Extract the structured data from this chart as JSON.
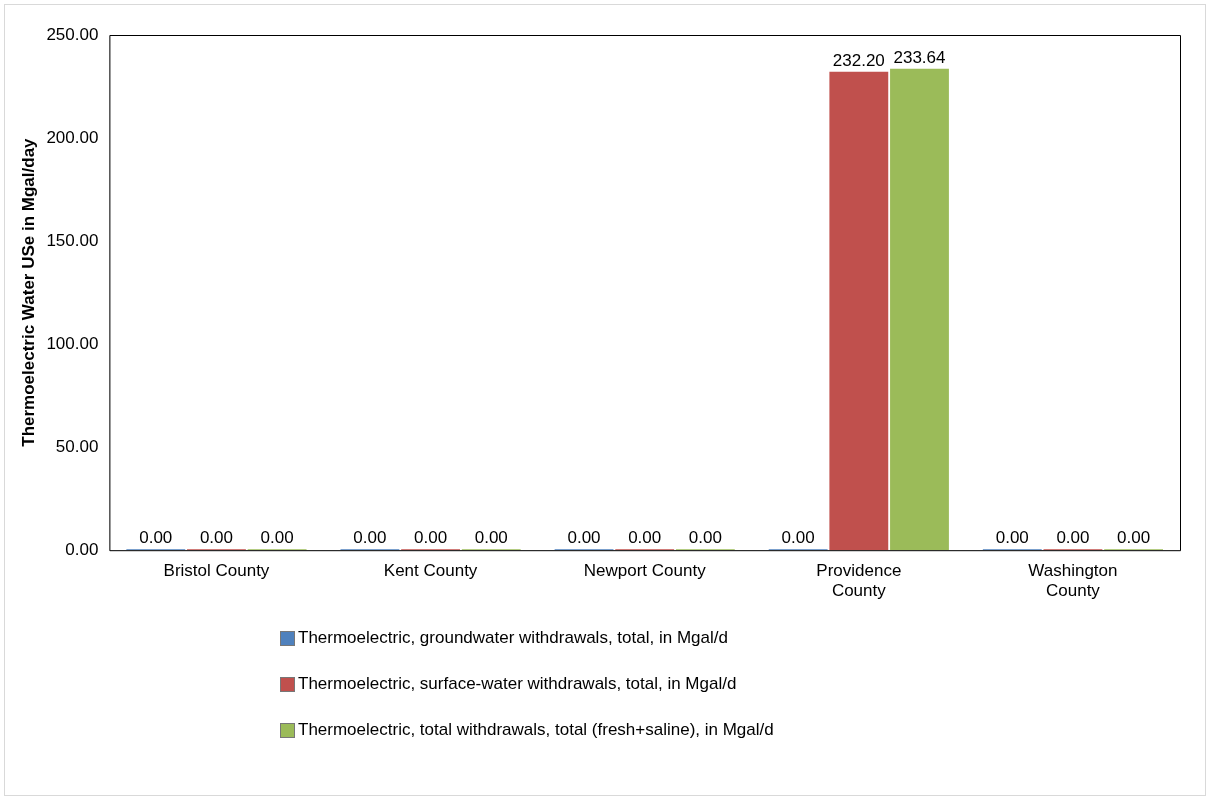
{
  "chart_data": {
    "type": "bar",
    "ylabel": "Thermoelectric Water USe in Mgal/day",
    "categories": [
      "Bristol County",
      "Kent County",
      "Newport County",
      "Providence County",
      "Washington County"
    ],
    "series": [
      {
        "name": "Thermoelectric, groundwater withdrawals, total, in Mgal/d",
        "color": "#4f81bd",
        "values": [
          0,
          0,
          0,
          0,
          0
        ],
        "value_labels": [
          "0.00",
          "0.00",
          "0.00",
          "0.00",
          "0.00"
        ]
      },
      {
        "name": "Thermoelectric, surface-water withdrawals, total, in Mgal/d",
        "color": "#c0504d",
        "values": [
          0,
          0,
          0,
          232.2,
          0
        ],
        "value_labels": [
          "0.00",
          "0.00",
          "0.00",
          "232.20",
          "0.00"
        ]
      },
      {
        "name": "Thermoelectric, total withdrawals, total (fresh+saline), in Mgal/d",
        "color": "#9bbb59",
        "values": [
          0,
          0,
          0,
          233.64,
          0
        ],
        "value_labels": [
          "0.00",
          "0.00",
          "0.00",
          "233.64",
          "0.00"
        ]
      }
    ],
    "ylim": [
      0,
      250
    ],
    "yticks": [
      {
        "value": 0,
        "label": "0.00"
      },
      {
        "value": 50,
        "label": "50.00"
      },
      {
        "value": 100,
        "label": "100.00"
      },
      {
        "value": 150,
        "label": "150.00"
      },
      {
        "value": 200,
        "label": "200.00"
      },
      {
        "value": 250,
        "label": "250.00"
      }
    ],
    "grid": false,
    "legend": "bottom"
  }
}
